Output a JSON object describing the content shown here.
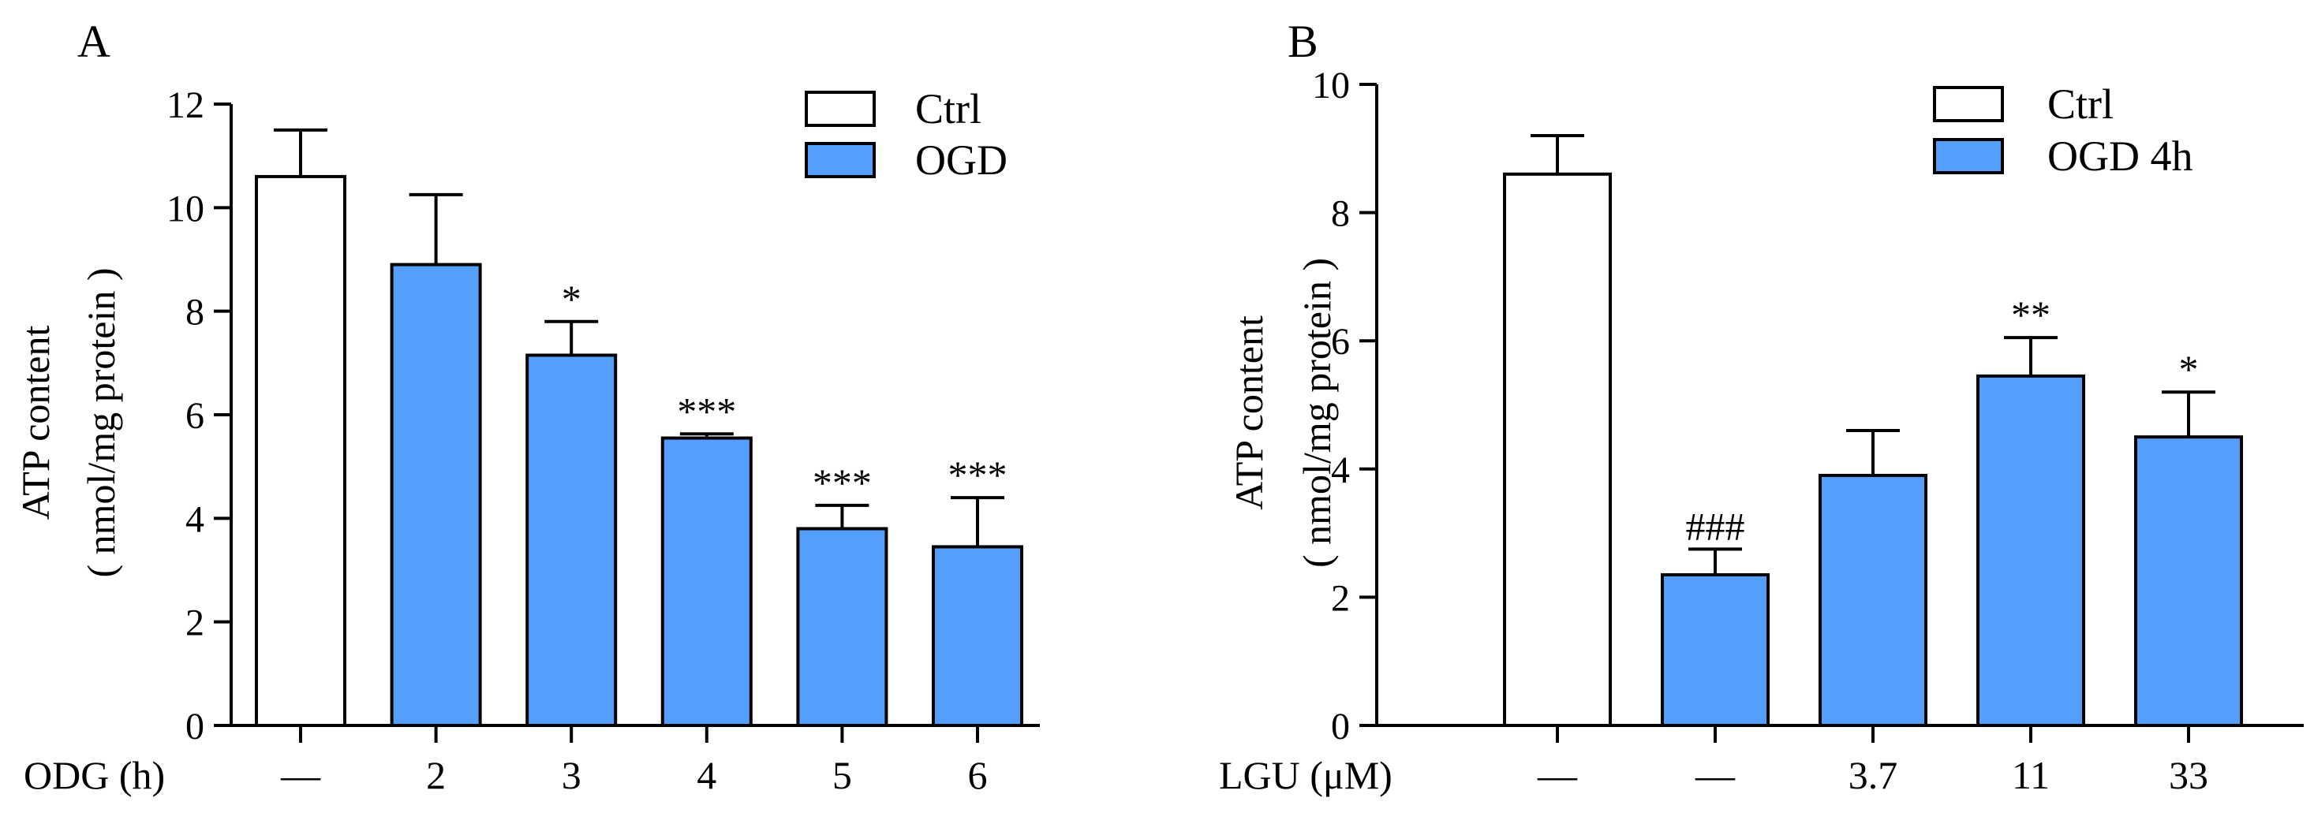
{
  "chart_data": [
    {
      "type": "bar",
      "panel_label": "A",
      "title": "",
      "ylabel_line1": "ATP content",
      "ylabel_line2": "( nmol/mg protein )",
      "xlabel": "ODG (h)",
      "ylim": [
        0,
        12
      ],
      "yticks": [
        "0",
        "2",
        "4",
        "6",
        "8",
        "10",
        "12"
      ],
      "categories": [
        "—",
        "2",
        "3",
        "4",
        "5",
        "6"
      ],
      "values": [
        10.6,
        8.9,
        7.15,
        5.55,
        3.8,
        3.45
      ],
      "errors": [
        0.9,
        1.35,
        0.65,
        0.08,
        0.45,
        0.95
      ],
      "groups": [
        "ctrl",
        "treat",
        "treat",
        "treat",
        "treat",
        "treat"
      ],
      "annotations": [
        "",
        "",
        "*",
        "***",
        "***",
        "***"
      ],
      "legend": [
        {
          "key": "ctrl",
          "label": "Ctrl"
        },
        {
          "key": "treat",
          "label": "OGD"
        }
      ],
      "legend_position": "top-right",
      "colors": {
        "ctrl": "#ffffff",
        "treat": "#549ffc"
      },
      "grid": false
    },
    {
      "type": "bar",
      "panel_label": "B",
      "title": "",
      "ylabel_line1": "ATP content",
      "ylabel_line2": "( nmol/mg protein )",
      "xlabel": "LGU (μM)",
      "ylim": [
        0,
        10
      ],
      "yticks": [
        "0",
        "2",
        "4",
        "6",
        "8",
        "10"
      ],
      "categories": [
        "—",
        "—",
        "3.7",
        "11",
        "33"
      ],
      "values": [
        8.6,
        2.35,
        3.9,
        5.45,
        4.5
      ],
      "errors": [
        0.6,
        0.4,
        0.7,
        0.6,
        0.7
      ],
      "groups": [
        "ctrl",
        "treat",
        "treat",
        "treat",
        "treat"
      ],
      "annotations": [
        "",
        "###",
        "",
        "**",
        "*"
      ],
      "legend": [
        {
          "key": "ctrl",
          "label": "Ctrl"
        },
        {
          "key": "treat",
          "label": "OGD 4h"
        }
      ],
      "legend_position": "top-right",
      "colors": {
        "ctrl": "#ffffff",
        "treat": "#549ffc"
      },
      "grid": false
    }
  ]
}
